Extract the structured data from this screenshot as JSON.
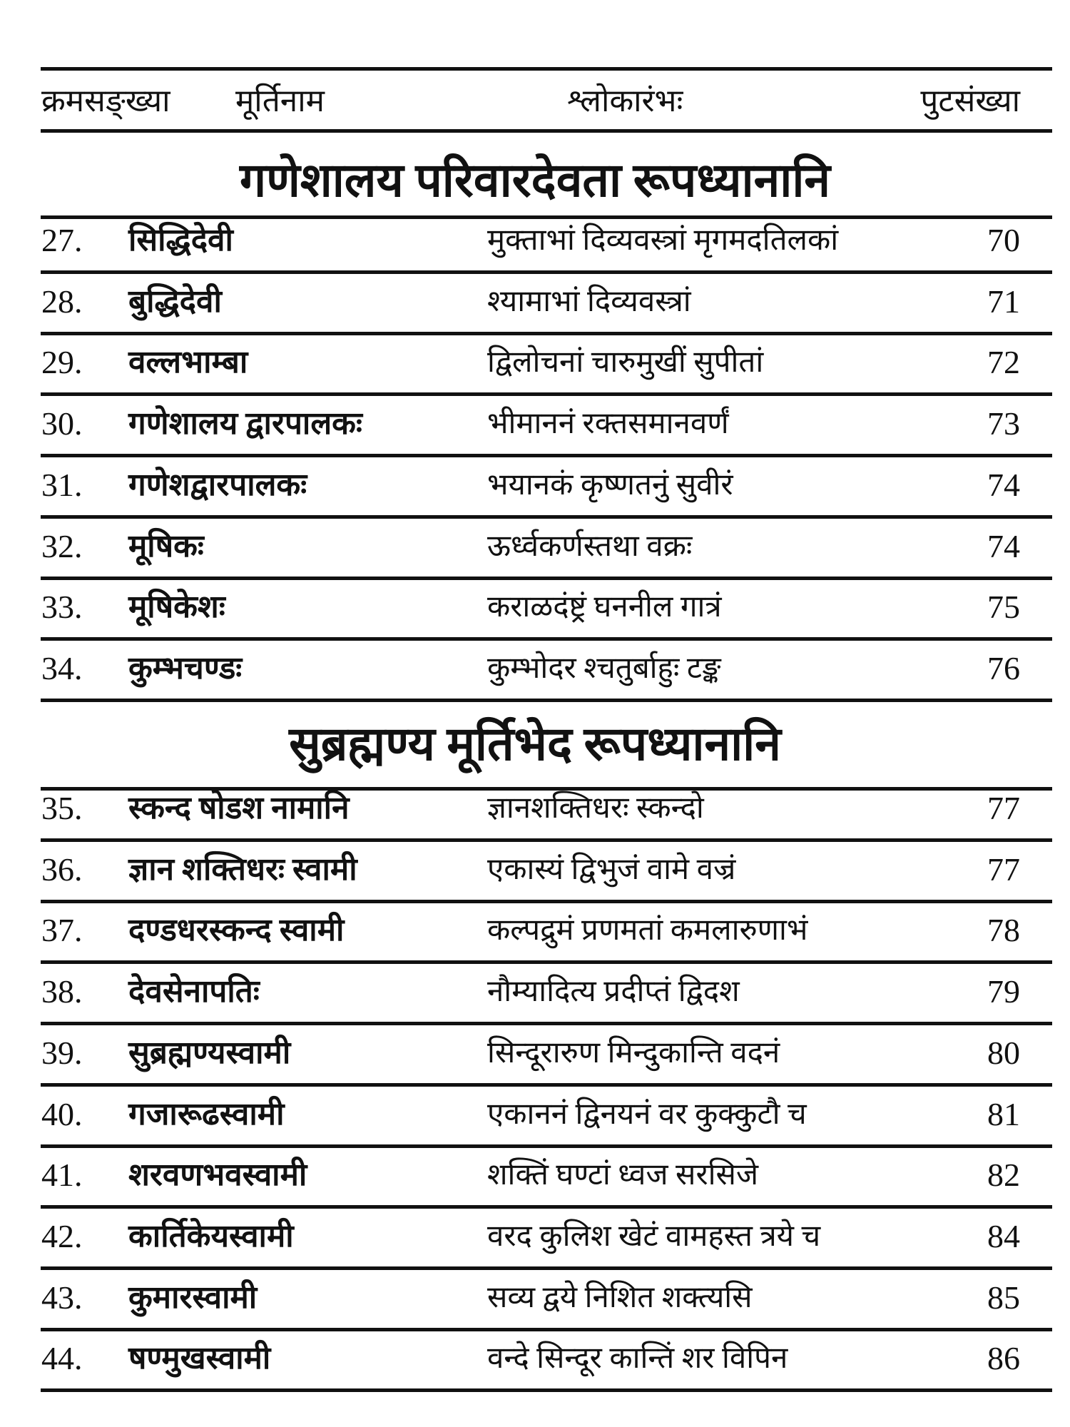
{
  "header": {
    "serial": "क्रमसङ्ख्या",
    "name": "मूर्तिनाम",
    "shloka": "श्लोकारंभः",
    "page": "पुटसंख्या"
  },
  "sections": [
    {
      "title": "गणेशालय परिवारदेवता रूपध्यानानि",
      "rows": [
        {
          "num": "27.",
          "name": "सिद्धिदेवी",
          "shloka": "मुक्ताभां दिव्यवस्त्रां मृगमदतिलकां",
          "page": "70"
        },
        {
          "num": "28.",
          "name": "बुद्धिदेवी",
          "shloka": "श्यामाभां दिव्यवस्त्रां",
          "page": "71"
        },
        {
          "num": "29.",
          "name": "वल्लभाम्बा",
          "shloka": "द्विलोचनां चारुमुखीं सुपीतां",
          "page": "72"
        },
        {
          "num": "30.",
          "name": "गणेशालय द्वारपालकः",
          "shloka": "भीमाननं रक्तसमानवर्णं",
          "page": "73"
        },
        {
          "num": "31.",
          "name": "गणेशद्वारपालकः",
          "shloka": "भयानकं कृष्णतनुं सुवीरं",
          "page": "74"
        },
        {
          "num": "32.",
          "name": "मूषिकः",
          "shloka": "ऊर्ध्वकर्णस्तथा वक्रः",
          "page": "74"
        },
        {
          "num": "33.",
          "name": "मूषिकेशः",
          "shloka": "कराळदंष्ट्रं घननील गात्रं",
          "page": "75"
        },
        {
          "num": "34.",
          "name": "कुम्भचण्डः",
          "shloka": "कुम्भोदर श्चतुर्बाहुः टङ्क",
          "page": "76"
        }
      ]
    },
    {
      "title": "सुब्रह्मण्य मूर्तिभेद रूपध्यानानि",
      "rows": [
        {
          "num": "35.",
          "name": "स्कन्द षोडश नामानि",
          "shloka": "ज्ञानशक्तिधरः स्कन्दो",
          "page": "77"
        },
        {
          "num": "36.",
          "name": "ज्ञान शक्तिधरः स्वामी",
          "shloka": "एकास्यं द्विभुजं वामे वज्रं",
          "page": "77"
        },
        {
          "num": "37.",
          "name": "दण्डधरस्कन्द स्वामी",
          "shloka": "कल्पद्रुमं प्रणमतां कमलारुणाभं",
          "page": "78"
        },
        {
          "num": "38.",
          "name": "देवसेनापतिः",
          "shloka": "नौम्यादित्य प्रदीप्तं द्विदश",
          "page": "79"
        },
        {
          "num": "39.",
          "name": "सुब्रह्मण्यस्वामी",
          "shloka": "सिन्दूरारुण मिन्दुकान्ति वदनं",
          "page": "80"
        },
        {
          "num": "40.",
          "name": "गजारूढस्वामी",
          "shloka": "एकाननं द्विनयनं वर कुक्कुटौ च",
          "page": "81"
        },
        {
          "num": "41.",
          "name": "शरवणभवस्वामी",
          "shloka": "शक्तिं घण्टां ध्वज सरसिजे",
          "page": "82"
        },
        {
          "num": "42.",
          "name": "कार्तिकेयस्वामी",
          "shloka": "वरद कुलिश खेटं वामहस्त त्रये च",
          "page": "84"
        },
        {
          "num": "43.",
          "name": "कुमारस्वामी",
          "shloka": "सव्य द्वये निशित शक्त्यसि",
          "page": "85"
        },
        {
          "num": "44.",
          "name": "षण्मुखस्वामी",
          "shloka": "वन्दे सिन्दूर कान्तिं शर विपिन",
          "page": "86"
        }
      ]
    }
  ]
}
